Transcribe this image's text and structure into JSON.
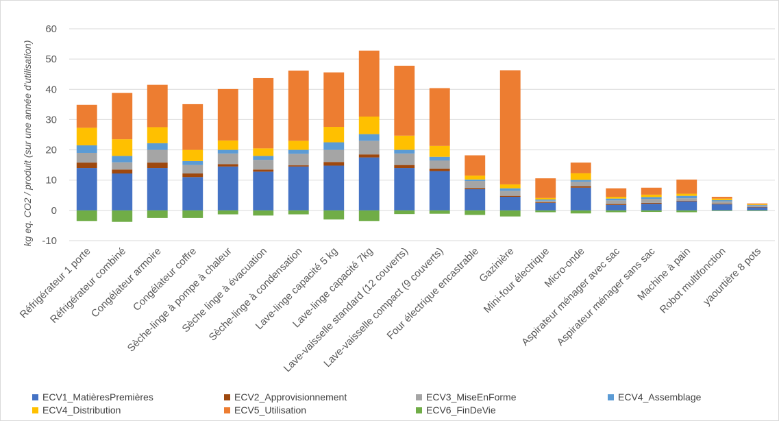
{
  "chart_data": {
    "type": "bar",
    "stacked": true,
    "ylabel": "kg eq. CO2 / produit (sur une année d'utilisation)",
    "ylim": [
      -10,
      60
    ],
    "yticks": [
      60,
      50,
      40,
      30,
      20,
      10,
      0,
      -10
    ],
    "grid": true,
    "legend_position": "bottom",
    "categories": [
      "Réfrigérateur 1 porte",
      "Réfrigérateur combiné",
      "Congélateur armoire",
      "Congélateur coffre",
      "Sèche-linge à pompe à chaleur",
      "Sèche linge à évacuation",
      "Sèche-linge à condensation",
      "Lave-linge capacité 5 kg",
      "Lave-linge capacité 7kg",
      "Lave-vaisselle standard (12 couverts)",
      "Lave-vaisselle compact (9 couverts)",
      "Four électrique encastrable",
      "Gazinière",
      "Mini-four électrique",
      "Micro-onde",
      "Aspirateur ménager avec sac",
      "Aspirateur ménager sans sac",
      "Machine à pain",
      "Robot multifonction",
      "yaourtière 8 pots"
    ],
    "series": [
      {
        "name": "ECV1_MatièresPremières",
        "color": "#4472c4",
        "values": [
          14,
          12.2,
          14,
          11,
          14.5,
          12.8,
          14.5,
          14.8,
          17.5,
          14,
          13,
          7,
          4.5,
          2.5,
          7.5,
          1.8,
          2.2,
          3,
          2,
          1
        ]
      },
      {
        "name": "ECV2_Approvisionnement",
        "color": "#9e480e",
        "values": [
          1.8,
          1.3,
          1.8,
          1.2,
          0.8,
          0.7,
          0.4,
          1.2,
          1,
          1,
          0.8,
          0.4,
          0.3,
          0.2,
          0.5,
          0.3,
          0.3,
          0.2,
          0.2,
          0.1
        ]
      },
      {
        "name": "ECV3_MiseEnForme",
        "color": "#a5a5a5",
        "values": [
          3.2,
          2.4,
          4.2,
          2.8,
          3.5,
          3.2,
          3.8,
          4,
          4.5,
          3.8,
          2.7,
          2.3,
          1.7,
          0.5,
          1.5,
          1.2,
          1.3,
          0.8,
          0.8,
          0.5
        ]
      },
      {
        "name": "ECV4_Assemblage",
        "color": "#5b9bd5",
        "values": [
          2.5,
          2.1,
          2.2,
          1.3,
          1.2,
          1.3,
          1.3,
          2.5,
          2.2,
          1.2,
          1.2,
          0.5,
          0.8,
          0.4,
          0.6,
          0.6,
          0.6,
          0.8,
          0.4,
          0.2
        ]
      },
      {
        "name": "ECV4_Distribution",
        "color": "#ffc000",
        "values": [
          5.8,
          5.5,
          5.3,
          3.7,
          3.1,
          2.5,
          3,
          5.1,
          5.8,
          4.7,
          3.6,
          1.3,
          1.3,
          0.5,
          2.2,
          0.6,
          0.8,
          0.7,
          0.5,
          0.2
        ]
      },
      {
        "name": "ECV5_Utilisation",
        "color": "#ed7d31",
        "values": [
          7.6,
          15.3,
          14,
          15.1,
          17,
          23.2,
          23.2,
          18,
          21.8,
          23.1,
          19.1,
          6.7,
          37.7,
          6.5,
          3.5,
          2.8,
          2.3,
          4.7,
          0.6,
          0.3
        ]
      },
      {
        "name": "ECV6_FinDeVie",
        "color": "#70ad47",
        "values": [
          -3.5,
          -3.8,
          -2.5,
          -2.5,
          -1.3,
          -1.7,
          -1.3,
          -3,
          -3.5,
          -1.2,
          -1.1,
          -1.5,
          -2,
          -0.6,
          -1,
          -0.6,
          -0.5,
          -0.6,
          -0.2,
          -0.2
        ]
      }
    ]
  }
}
